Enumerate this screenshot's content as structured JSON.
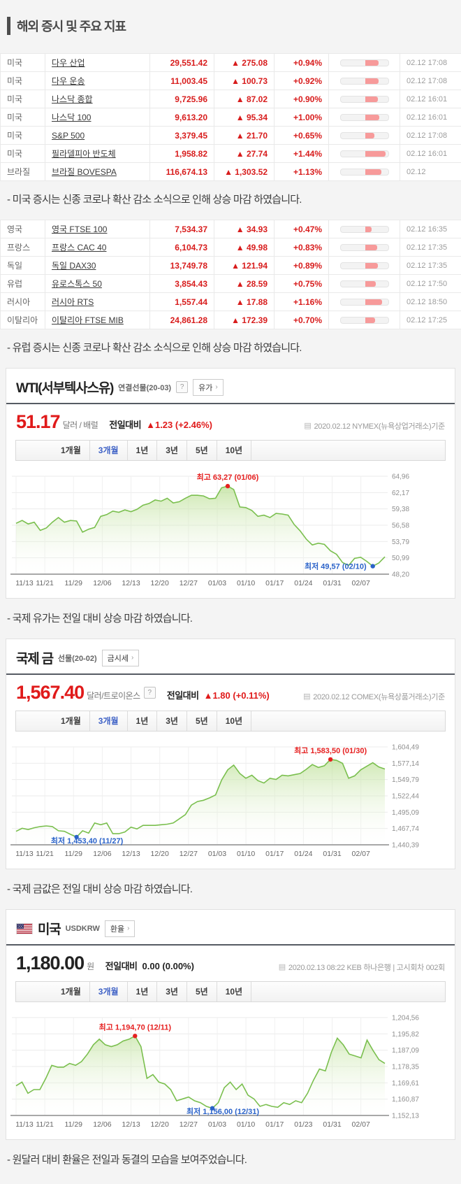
{
  "page_title": "해외 증시 및 주요 지표",
  "colors": {
    "up_red": "#d81c1c",
    "price_red": "#e01a1a",
    "min_blue": "#2a62c9",
    "max_red": "#e62020",
    "tab_blue": "#3f62c6",
    "line_green": "#7abf4e",
    "bar_pink": "#f79a9a"
  },
  "markets": {
    "us": {
      "rows": [
        {
          "country": "미국",
          "name": "다우 산업",
          "value": "29,551.42",
          "change": "▲ 275.08",
          "pct": "+0.94%",
          "pct_num": 0.94,
          "time": "02.12 17:08"
        },
        {
          "country": "미국",
          "name": "다우 운송",
          "value": "11,003.45",
          "change": "▲ 100.73",
          "pct": "+0.92%",
          "pct_num": 0.92,
          "time": "02.12 17:08"
        },
        {
          "country": "미국",
          "name": "나스닥 종합",
          "value": "9,725.96",
          "change": "▲ 87.02",
          "pct": "+0.90%",
          "pct_num": 0.9,
          "time": "02.12 16:01"
        },
        {
          "country": "미국",
          "name": "나스닥 100",
          "value": "9,613.20",
          "change": "▲ 95.34",
          "pct": "+1.00%",
          "pct_num": 1.0,
          "time": "02.12 16:01"
        },
        {
          "country": "미국",
          "name": "S&P 500",
          "value": "3,379.45",
          "change": "▲ 21.70",
          "pct": "+0.65%",
          "pct_num": 0.65,
          "time": "02.12 17:08"
        },
        {
          "country": "미국",
          "name": "필라델피아 반도체",
          "value": "1,958.82",
          "change": "▲ 27.74",
          "pct": "+1.44%",
          "pct_num": 1.44,
          "time": "02.12 16:01"
        },
        {
          "country": "브라질",
          "name": "브라질 BOVESPA",
          "value": "116,674.13",
          "change": "▲ 1,303.52",
          "pct": "+1.13%",
          "pct_num": 1.13,
          "time": "02.12"
        }
      ]
    },
    "eu": {
      "rows": [
        {
          "country": "영국",
          "name": "영국 FTSE 100",
          "value": "7,534.37",
          "change": "▲ 34.93",
          "pct": "+0.47%",
          "pct_num": 0.47,
          "time": "02.12 16:35"
        },
        {
          "country": "프랑스",
          "name": "프랑스 CAC 40",
          "value": "6,104.73",
          "change": "▲ 49.98",
          "pct": "+0.83%",
          "pct_num": 0.83,
          "time": "02.12 17:35"
        },
        {
          "country": "독일",
          "name": "독일 DAX30",
          "value": "13,749.78",
          "change": "▲ 121.94",
          "pct": "+0.89%",
          "pct_num": 0.89,
          "time": "02.12 17:35"
        },
        {
          "country": "유럽",
          "name": "유로스톡스 50",
          "value": "3,854.43",
          "change": "▲ 28.59",
          "pct": "+0.75%",
          "pct_num": 0.75,
          "time": "02.12 17:50"
        },
        {
          "country": "러시아",
          "name": "러시아 RTS",
          "value": "1,557.44",
          "change": "▲ 17.88",
          "pct": "+1.16%",
          "pct_num": 1.16,
          "time": "02.12 18:50"
        },
        {
          "country": "이탈리아",
          "name": "이탈리아 FTSE MIB",
          "value": "24,861.28",
          "change": "▲ 172.39",
          "pct": "+0.70%",
          "pct_num": 0.7,
          "time": "02.12 17:25"
        }
      ]
    }
  },
  "notes": {
    "us": "- 미국 증시는 신종 코로나 확산 감소 소식으로 인해 상승 마감 하였습니다.",
    "eu": "- 유럽 증시는 신종 코로나 확산 감소 소식으로 인해 상승 마감 하였습니다.",
    "wti": "- 국제 유가는 전일 대비 상승 마감 하였습니다.",
    "gold": "- 국제 금값은 전일 대비 상승 마감 하였습니다.",
    "usd": "- 원달러 대비 환율은 전일과 동결의 모습을 보여주었습니다."
  },
  "tabs": {
    "items": [
      "1개월",
      "3개월",
      "1년",
      "3년",
      "5년",
      "10년"
    ],
    "active": "3개월"
  },
  "cards": {
    "wti": {
      "title": "WTI(서부텍사스유)",
      "subtitle": "연결선물(20-03)",
      "help_icon": "?",
      "link_button": "유가",
      "arrow": "›",
      "price": "51.17",
      "unit": "달러 / 배럴",
      "diff_label": "전일대비",
      "diff": "▲1.23 (+2.46%)",
      "basis_icon": "▤",
      "basis": "2020.02.12 NYMEX(뉴욕상업거래소)기준"
    },
    "gold": {
      "title": "국제 금",
      "subtitle": "선물(20-02)",
      "help_icon": "?",
      "link_button": "금시세",
      "arrow": "›",
      "price": "1,567.40",
      "unit": "달러/트로이온스",
      "diff_label": "전일대비",
      "diff": "▲1.80 (+0.11%)",
      "basis_icon": "▤",
      "basis": "2020.02.12 COMEX(뉴욕상품거래소)기준"
    },
    "usd": {
      "title": "미국",
      "subtitle": "USDKRW",
      "link_button": "환율",
      "arrow": "›",
      "price": "1,180.00",
      "unit": "원",
      "diff_label": "전일대비",
      "diff": "0.00 (0.00%)",
      "basis_icon": "▤",
      "basis": "2020.02.13 08:22 KEB 하나은행 | 고시회차 002회"
    }
  },
  "chart_data": [
    {
      "id": "wti",
      "type": "area",
      "title": "WTI(서부텍사스유) 3개월 차트",
      "x_labels": [
        "11/13",
        "11/21",
        "11/29",
        "12/06",
        "12/13",
        "12/20",
        "12/27",
        "01/03",
        "01/10",
        "01/17",
        "01/24",
        "01/31",
        "02/07"
      ],
      "y_labels": [
        "64,96",
        "62,17",
        "59,38",
        "56,58",
        "53,79",
        "50,99",
        "48,20"
      ],
      "y_min": 48.2,
      "y_max": 64.96,
      "max": {
        "label": "최고 63,27 (01/06)",
        "value": 63.27,
        "index": 35
      },
      "min": {
        "label": "최저 49,57 (02/10)",
        "value": 49.57,
        "index": 59
      },
      "values": [
        56.9,
        57.4,
        56.8,
        57.1,
        55.7,
        56.1,
        57.1,
        57.9,
        57.1,
        57.4,
        57.3,
        55.4,
        55.9,
        56.2,
        58.1,
        58.4,
        59.0,
        58.8,
        59.2,
        58.9,
        59.3,
        60.0,
        60.3,
        60.9,
        60.7,
        61.2,
        60.4,
        60.6,
        61.2,
        61.7,
        61.7,
        61.6,
        61.1,
        61.2,
        63.0,
        63.27,
        62.7,
        59.7,
        59.6,
        59.1,
        58.1,
        58.3,
        57.9,
        58.6,
        58.5,
        58.3,
        56.7,
        55.6,
        54.2,
        53.2,
        53.5,
        53.3,
        52.2,
        51.6,
        50.2,
        49.7,
        50.9,
        51.1,
        50.4,
        49.57,
        50.1,
        51.17
      ]
    },
    {
      "id": "gold",
      "type": "area",
      "title": "국제 금 3개월 차트",
      "x_labels": [
        "11/13",
        "11/21",
        "11/29",
        "12/06",
        "12/13",
        "12/20",
        "12/27",
        "01/03",
        "01/10",
        "01/17",
        "01/24",
        "01/31",
        "02/07"
      ],
      "y_labels": [
        "1,604,49",
        "1,577,14",
        "1,549,79",
        "1,522,44",
        "1,495,09",
        "1,467,74",
        "1,440,39"
      ],
      "y_min": 1440.39,
      "y_max": 1604.49,
      "max": {
        "label": "최고 1,583,50 (01/30)",
        "value": 1583.5,
        "index": 52
      },
      "min": {
        "label": "최저 1,453,40 (11/27)",
        "value": 1453.4,
        "index": 10
      },
      "values": [
        1463,
        1468,
        1466,
        1469,
        1471,
        1472,
        1471,
        1464,
        1463,
        1458,
        1453.4,
        1464,
        1460,
        1477,
        1474,
        1477,
        1459,
        1459,
        1462,
        1470,
        1467,
        1473,
        1473,
        1473,
        1474,
        1475,
        1477,
        1484,
        1491,
        1507,
        1513,
        1515,
        1519,
        1524,
        1549,
        1566,
        1574,
        1560,
        1552,
        1557,
        1548,
        1544,
        1552,
        1550,
        1557,
        1556,
        1558,
        1560,
        1567,
        1575,
        1570,
        1573,
        1583.5,
        1582,
        1577,
        1552,
        1556,
        1566,
        1572,
        1578,
        1571,
        1567.4
      ]
    },
    {
      "id": "usd",
      "type": "area",
      "title": "미국 USDKRW 3개월 차트",
      "x_labels": [
        "11/13",
        "11/21",
        "11/29",
        "12/06",
        "12/13",
        "12/20",
        "12/27",
        "01/03",
        "01/10",
        "01/17",
        "01/23",
        "01/31",
        "02/07"
      ],
      "y_labels": [
        "1,204,56",
        "1,195,82",
        "1,187,09",
        "1,178,35",
        "1,169,61",
        "1,160,87",
        "1,152,13"
      ],
      "y_min": 1152.13,
      "y_max": 1204.56,
      "max": {
        "label": "최고 1,194,70 (12/11)",
        "value": 1194.7,
        "index": 20
      },
      "min": {
        "label": "최저 1,156,00 (12/31)",
        "value": 1156.0,
        "index": 33
      },
      "values": [
        1168,
        1170,
        1164,
        1166,
        1166,
        1172,
        1179,
        1178,
        1178,
        1180,
        1179,
        1181,
        1185,
        1190,
        1193,
        1190,
        1189,
        1190,
        1192,
        1193,
        1194.7,
        1189,
        1172,
        1174,
        1170,
        1169,
        1166,
        1160,
        1161,
        1162,
        1160,
        1159,
        1157,
        1156,
        1159,
        1167,
        1170,
        1166,
        1169,
        1163,
        1161,
        1157,
        1158,
        1157,
        1156.5,
        1159,
        1158,
        1160,
        1159,
        1164,
        1171,
        1177,
        1176,
        1186,
        1193.5,
        1190,
        1185,
        1184,
        1183,
        1192.5,
        1187,
        1182,
        1180
      ]
    }
  ]
}
